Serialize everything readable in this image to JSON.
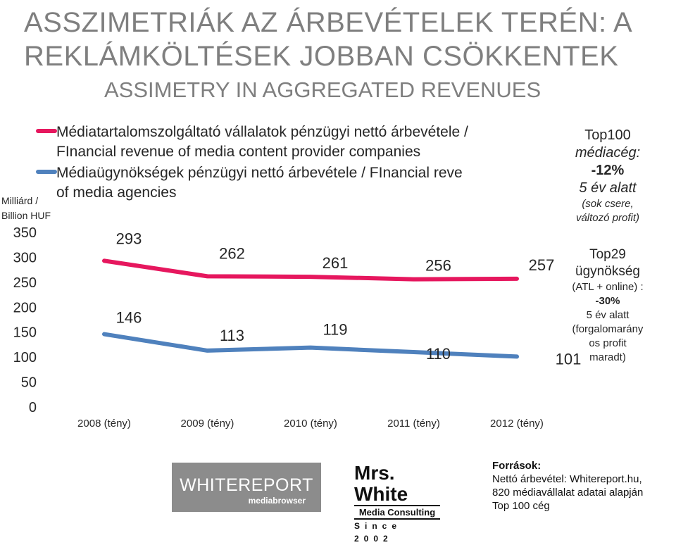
{
  "header": {
    "title_line1": "ASSZIMETRIÁK AZ ÁRBEVÉTELEK TERÉN: A",
    "title_line2": "REKLÁMKÖLTÉSEK JOBBAN CSÖKKENTEK",
    "subtitle": "ASSIMETRY IN AGGREGATED REVENUES"
  },
  "chart_data": {
    "type": "line",
    "unit_label_lines": [
      "Milliárd /",
      "Billion HUF"
    ],
    "categories": [
      "2008 (tény)",
      "2009 (tény)",
      "2010 (tény)",
      "2011 (tény)",
      "2012 (tény)"
    ],
    "yticks": [
      0,
      50,
      100,
      150,
      200,
      250,
      300,
      350
    ],
    "ylim": [
      0,
      350
    ],
    "grid": false,
    "legend_position": "top",
    "series": [
      {
        "name_lines": [
          "Médiatartalomszolgáltató vállalatok pénzügyi nettó árbevétele /",
          "FInancial revenue of media content provider companies"
        ],
        "color": "#e6175e",
        "values": [
          293,
          262,
          261,
          256,
          257
        ],
        "labels": [
          "293",
          "262",
          "261",
          "256",
          "257"
        ]
      },
      {
        "name_lines": [
          "Médiaügynökségek pénzügyi nettó árbevétele / FInancial reve",
          "of media agencies"
        ],
        "color": "#4f81bd",
        "values": [
          146,
          113,
          119,
          110,
          101
        ],
        "labels": [
          "146",
          "113",
          "119",
          "110",
          "101"
        ]
      }
    ]
  },
  "notes": {
    "top100": [
      "Top100",
      "médiacég:",
      "-12%",
      "5 év alatt",
      "(sok csere,",
      "változó profit)"
    ],
    "top29": [
      "Top29",
      "ügynökség",
      "(ATL + online) :",
      "-30%",
      "5 év alatt",
      "(forgalomarány",
      "os profit",
      "maradt)"
    ]
  },
  "logos": {
    "whitereport_main": "WHITEREPORT",
    "whitereport_sub": "mediabrowser",
    "mrswhite_main": "Mrs. White",
    "mrswhite_sub": "Media Consulting",
    "mrswhite_since": "Since 2002"
  },
  "sources": {
    "heading": "Források:",
    "lines": [
      "Nettó árbevétel: Whitereport.hu,",
      "820 médiavállalat adatai alapján",
      "Top 100 cég"
    ]
  }
}
